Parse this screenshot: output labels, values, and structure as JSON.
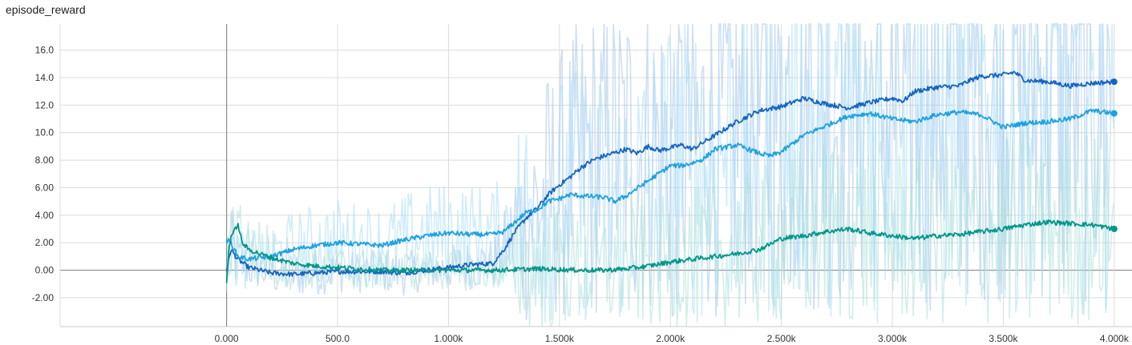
{
  "chart_data": {
    "type": "line",
    "title": "episode_reward",
    "xlabel": "",
    "ylabel": "",
    "xlim": [
      -750,
      4080
    ],
    "ylim": [
      -4.1,
      17.9
    ],
    "x_ticks": [
      "0.000",
      "500.0",
      "1.000k",
      "1.500k",
      "2.000k",
      "2.500k",
      "3.000k",
      "3.500k",
      "4.000k"
    ],
    "y_ticks": [
      "-2.00",
      "0.00",
      "2.00",
      "4.00",
      "6.00",
      "8.00",
      "10.0",
      "12.0",
      "14.0",
      "16.0"
    ],
    "grid": true,
    "legend": "none",
    "series": [
      {
        "color": "#1565c0",
        "raw_color": "#a6c5ea",
        "x": [
          0,
          20,
          50,
          100,
          200,
          300,
          400,
          500,
          600,
          700,
          800,
          900,
          1000,
          1100,
          1200,
          1250,
          1300,
          1350,
          1400,
          1450,
          1500,
          1550,
          1600,
          1650,
          1700,
          1800,
          1850,
          1900,
          1950,
          2000,
          2050,
          2100,
          2150,
          2200,
          2300,
          2400,
          2500,
          2600,
          2700,
          2800,
          2900,
          3000,
          3050,
          3100,
          3200,
          3300,
          3350,
          3400,
          3500,
          3550,
          3600,
          3700,
          3800,
          3900,
          4000
        ],
        "y": [
          0.0,
          1.5,
          0.8,
          0.2,
          -0.2,
          -0.3,
          -0.2,
          -0.1,
          -0.1,
          -0.1,
          -0.2,
          0.0,
          0.2,
          0.4,
          0.5,
          1.5,
          2.8,
          3.8,
          4.5,
          5.5,
          6.2,
          6.8,
          7.5,
          8.0,
          8.3,
          8.8,
          8.5,
          9.0,
          8.7,
          8.9,
          9.1,
          8.8,
          9.3,
          9.8,
          10.8,
          11.6,
          11.9,
          12.5,
          12.1,
          11.8,
          12.2,
          12.5,
          12.3,
          13.0,
          13.3,
          13.4,
          13.8,
          14.1,
          14.2,
          14.4,
          13.8,
          13.7,
          13.4,
          13.6,
          13.7
        ]
      },
      {
        "color": "#1ea1e0",
        "raw_color": "#a9dff7",
        "x": [
          0,
          20,
          50,
          100,
          200,
          300,
          400,
          500,
          600,
          700,
          800,
          900,
          1000,
          1100,
          1200,
          1250,
          1300,
          1350,
          1400,
          1450,
          1500,
          1550,
          1600,
          1700,
          1750,
          1800,
          1900,
          2000,
          2050,
          2100,
          2150,
          2200,
          2300,
          2400,
          2450,
          2500,
          2550,
          2600,
          2700,
          2800,
          2900,
          3000,
          3100,
          3200,
          3300,
          3400,
          3500,
          3600,
          3700,
          3800,
          3900,
          4000
        ],
        "y": [
          2.2,
          2.0,
          1.0,
          0.8,
          1.0,
          1.5,
          1.8,
          2.0,
          1.9,
          1.8,
          2.2,
          2.5,
          2.7,
          2.6,
          2.6,
          2.8,
          3.5,
          4.2,
          4.4,
          5.0,
          5.2,
          5.5,
          5.4,
          5.3,
          5.0,
          5.4,
          6.5,
          7.6,
          7.6,
          7.8,
          8.1,
          8.8,
          9.1,
          8.5,
          8.3,
          8.6,
          9.2,
          9.8,
          10.5,
          11.2,
          11.4,
          11.0,
          10.8,
          11.3,
          11.5,
          11.3,
          10.4,
          10.7,
          10.8,
          11.0,
          11.6,
          11.4
        ]
      },
      {
        "color": "#009688",
        "raw_color": "#aee0d8",
        "x": [
          0,
          10,
          20,
          35,
          50,
          70,
          100,
          200,
          300,
          400,
          500,
          600,
          700,
          800,
          900,
          1000,
          1200,
          1400,
          1600,
          1700,
          1800,
          1900,
          2000,
          2100,
          2200,
          2300,
          2400,
          2500,
          2600,
          2700,
          2800,
          2900,
          3000,
          3100,
          3200,
          3300,
          3400,
          3500,
          3600,
          3700,
          3800,
          3900,
          4000
        ],
        "y": [
          -1.0,
          1.5,
          2.5,
          2.8,
          3.4,
          2.0,
          1.5,
          0.9,
          0.5,
          0.3,
          0.2,
          0.1,
          0.0,
          0.0,
          0.0,
          0.0,
          0.0,
          0.1,
          0.0,
          0.0,
          0.1,
          0.3,
          0.6,
          0.8,
          1.0,
          1.2,
          1.5,
          2.3,
          2.5,
          2.8,
          3.0,
          2.7,
          2.5,
          2.3,
          2.5,
          2.6,
          2.8,
          3.0,
          3.3,
          3.5,
          3.4,
          3.3,
          3.0
        ]
      }
    ]
  }
}
